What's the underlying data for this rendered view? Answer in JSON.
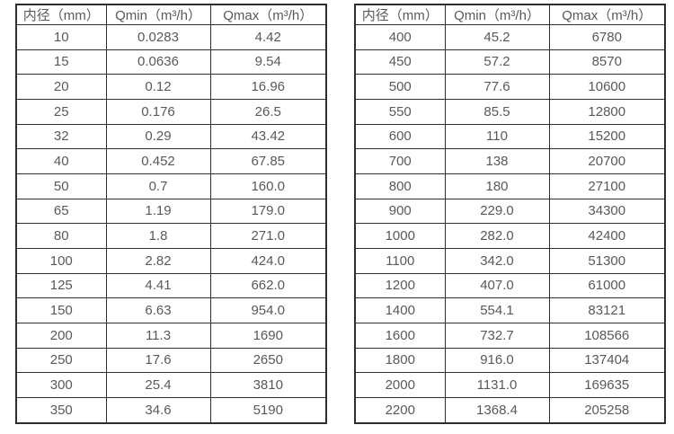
{
  "page": {
    "background": "#ffffff"
  },
  "colors": {
    "border": "#2e2e2e",
    "text": "#595959",
    "background": "#ffffff"
  },
  "tables": [
    {
      "name": "flow-spec-table-small-diameters",
      "headers": [
        "内径（mm）",
        "Qmin（m³/h）",
        "Qmax（m³/h）"
      ],
      "rows": [
        [
          "10",
          "0.0283",
          "4.42"
        ],
        [
          "15",
          "0.0636",
          "9.54"
        ],
        [
          "20",
          "0.12",
          "16.96"
        ],
        [
          "25",
          "0.176",
          "26.5"
        ],
        [
          "32",
          "0.29",
          "43.42"
        ],
        [
          "40",
          "0.452",
          "67.85"
        ],
        [
          "50",
          "0.7",
          "160.0"
        ],
        [
          "65",
          "1.19",
          "179.0"
        ],
        [
          "80",
          "1.8",
          "271.0"
        ],
        [
          "100",
          "2.82",
          "424.0"
        ],
        [
          "125",
          "4.41",
          "662.0"
        ],
        [
          "150",
          "6.63",
          "954.0"
        ],
        [
          "200",
          "11.3",
          "1690"
        ],
        [
          "250",
          "17.6",
          "2650"
        ],
        [
          "300",
          "25.4",
          "3810"
        ],
        [
          "350",
          "34.6",
          "5190"
        ]
      ]
    },
    {
      "name": "flow-spec-table-large-diameters",
      "headers": [
        "内径（mm）",
        "Qmin（m³/h）",
        "Qmax（m³/h）"
      ],
      "rows": [
        [
          "400",
          "45.2",
          "6780"
        ],
        [
          "450",
          "57.2",
          "8570"
        ],
        [
          "500",
          "77.6",
          "10600"
        ],
        [
          "550",
          "85.5",
          "12800"
        ],
        [
          "600",
          "110",
          "15200"
        ],
        [
          "700",
          "138",
          "20700"
        ],
        [
          "800",
          "180",
          "27100"
        ],
        [
          "900",
          "229.0",
          "34300"
        ],
        [
          "1000",
          "282.0",
          "42400"
        ],
        [
          "1100",
          "342.0",
          "51300"
        ],
        [
          "1200",
          "407.0",
          "61000"
        ],
        [
          "1400",
          "554.1",
          "83121"
        ],
        [
          "1600",
          "732.7",
          "108566"
        ],
        [
          "1800",
          "916.0",
          "137404"
        ],
        [
          "2000",
          "1131.0",
          "169635"
        ],
        [
          "2200",
          "1368.4",
          "205258"
        ]
      ]
    }
  ]
}
